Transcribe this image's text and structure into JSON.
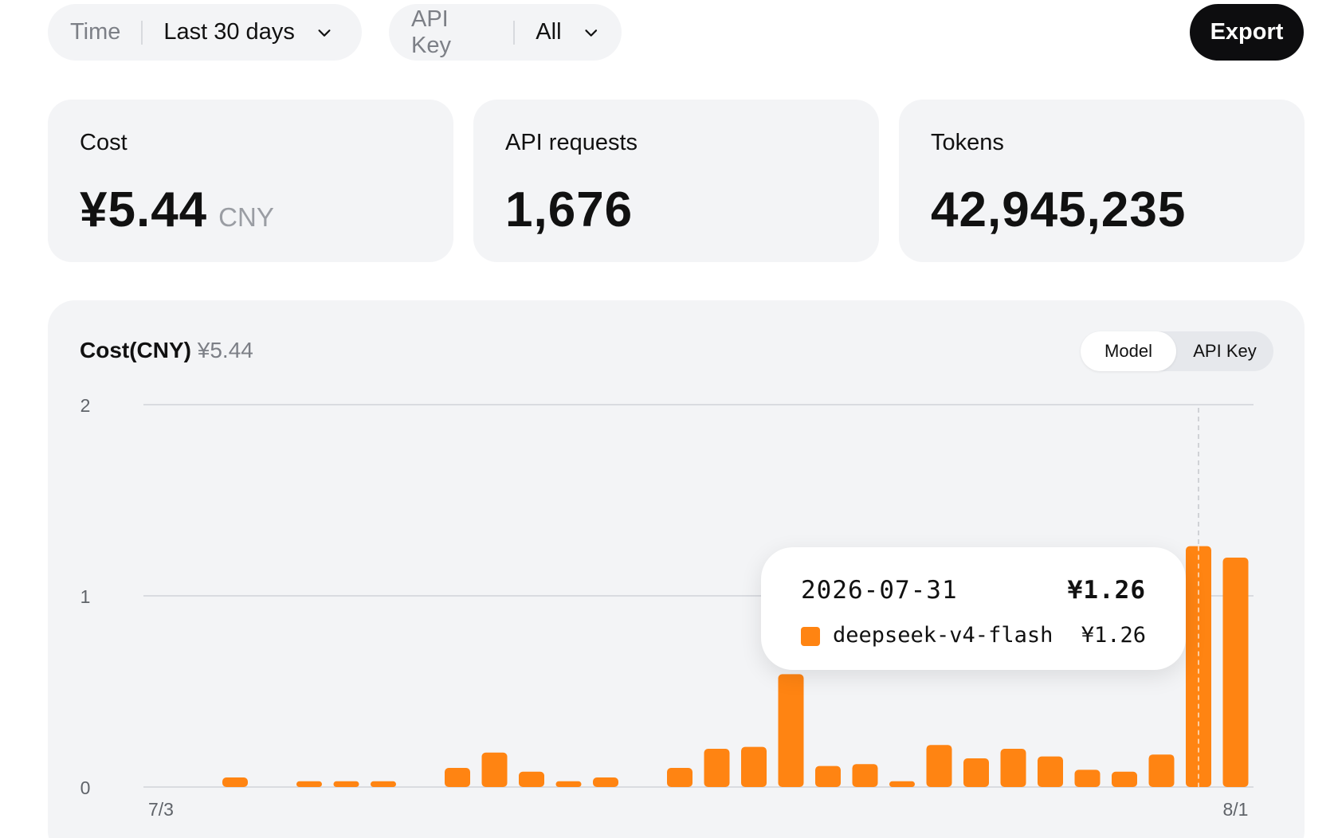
{
  "filters": {
    "time": {
      "label": "Time",
      "value": "Last 30 days"
    },
    "api_key": {
      "label": "API Key",
      "value": "All"
    }
  },
  "export_label": "Export",
  "cards": {
    "cost": {
      "title": "Cost",
      "value": "¥5.44",
      "unit": "CNY"
    },
    "requests": {
      "title": "API requests",
      "value": "1,676"
    },
    "tokens": {
      "title": "Tokens",
      "value": "42,945,235"
    }
  },
  "chart_panel": {
    "title": "Cost(CNY)",
    "total": "¥5.44",
    "toggle": {
      "active": "Model",
      "inactive": "API Key"
    }
  },
  "tooltip": {
    "date": "2026-07-31",
    "total": "¥1.26",
    "series_name": "deepseek-v4-flash",
    "series_value": "¥1.26"
  },
  "colors": {
    "bar": "#ff8412",
    "grid": "#d9dbe0",
    "axis_text": "#5f6369"
  },
  "chart_data": {
    "type": "bar",
    "x": [
      "2026-07-03",
      "2026-07-04",
      "2026-07-05",
      "2026-07-06",
      "2026-07-07",
      "2026-07-08",
      "2026-07-09",
      "2026-07-10",
      "2026-07-11",
      "2026-07-12",
      "2026-07-13",
      "2026-07-14",
      "2026-07-15",
      "2026-07-16",
      "2026-07-17",
      "2026-07-18",
      "2026-07-19",
      "2026-07-20",
      "2026-07-21",
      "2026-07-22",
      "2026-07-23",
      "2026-07-24",
      "2026-07-25",
      "2026-07-26",
      "2026-07-27",
      "2026-07-28",
      "2026-07-29",
      "2026-07-30",
      "2026-07-31",
      "2026-08-01"
    ],
    "x_tick_labels": [
      {
        "x": "2026-07-03",
        "label": "7/3"
      },
      {
        "x": "2026-08-01",
        "label": "8/1"
      }
    ],
    "series": [
      {
        "name": "deepseek-v4-flash",
        "values": [
          0,
          0,
          0.05,
          0,
          0.03,
          0.03,
          0.03,
          0,
          0.1,
          0.18,
          0.08,
          0.03,
          0.05,
          0,
          0.1,
          0.2,
          0.21,
          0.59,
          0.11,
          0.12,
          0.03,
          0.22,
          0.15,
          0.2,
          0.16,
          0.09,
          0.08,
          0.17,
          1.26,
          1.2
        ]
      }
    ],
    "ylim": [
      0,
      2
    ],
    "yticks": [
      0,
      1,
      2
    ],
    "grid": true,
    "highlight": "2026-07-31"
  }
}
